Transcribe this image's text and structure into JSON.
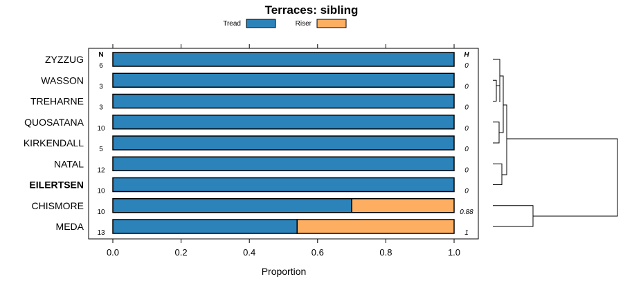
{
  "chart_data": {
    "type": "bar",
    "stacked": true,
    "orientation": "horizontal",
    "title": "Terraces: sibling",
    "xlabel": "Proportion",
    "xlim": [
      0,
      1
    ],
    "x_ticks": [
      "0.0",
      "0.2",
      "0.4",
      "0.6",
      "0.8",
      "1.0"
    ],
    "n_header": "N",
    "h_header": "H",
    "legend_position": "top",
    "categories": [
      "ZYZZUG",
      "WASSON",
      "TREHARNE",
      "QUOSATANA",
      "KIRKENDALL",
      "NATAL",
      "EILERTSEN",
      "CHISMORE",
      "MEDA"
    ],
    "highlighted_category": "EILERTSEN",
    "n": [
      "6",
      "3",
      "3",
      "10",
      "5",
      "12",
      "10",
      "10",
      "13"
    ],
    "h": [
      "0",
      "0",
      "0",
      "0",
      "0",
      "0",
      "0",
      "0.88",
      "1"
    ],
    "series": [
      {
        "name": "Tread",
        "color": "#2b83ba",
        "values": [
          1,
          1,
          1,
          1,
          1,
          1,
          1,
          0.7,
          0.54
        ]
      },
      {
        "name": "Riser",
        "color": "#fdae61",
        "values": [
          0,
          0,
          0,
          0,
          0,
          0,
          0,
          0.3,
          0.46
        ]
      }
    ],
    "dendrogram": true
  }
}
